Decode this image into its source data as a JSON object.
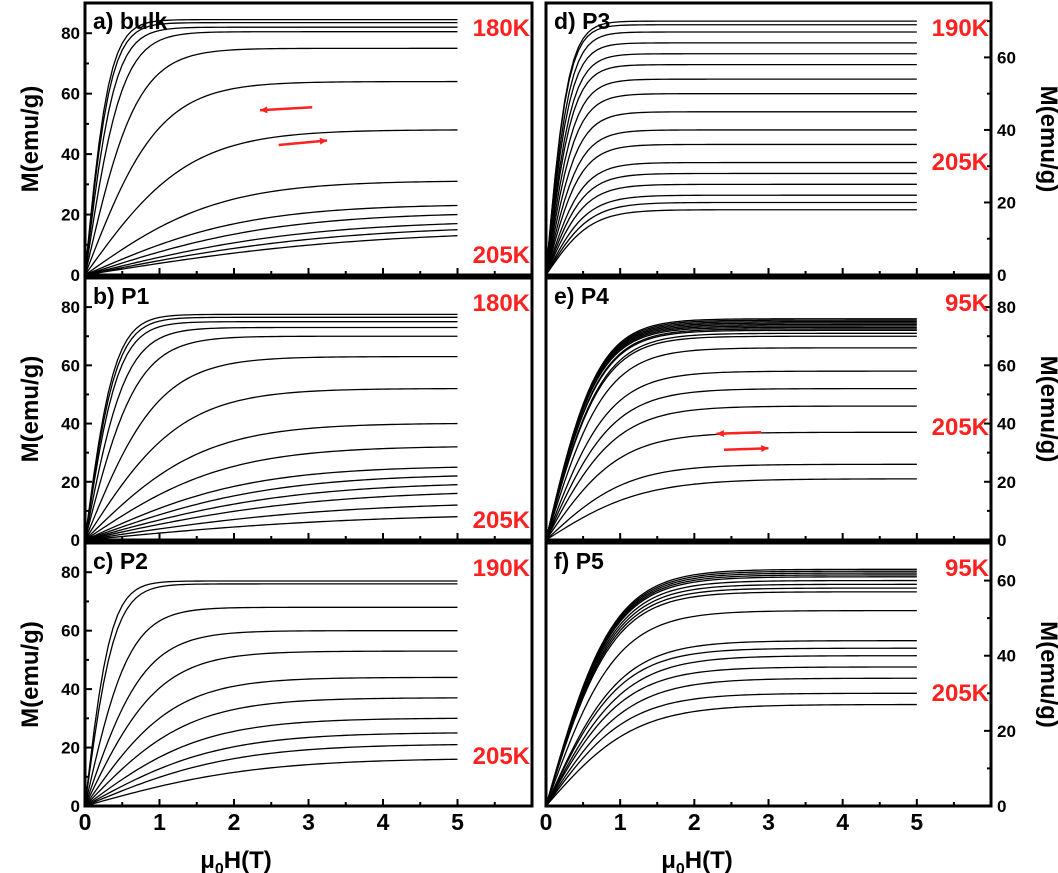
{
  "colors": {
    "axis": "#000000",
    "curve": "#000000",
    "temperature": "#ff2020",
    "arrow": "#ff2020"
  },
  "chart_data": [
    {
      "type": "line",
      "panel_label": "a) bulk",
      "xlabel_main": "μ",
      "xlabel_sub": "0",
      "xlabel_tail": "H(T)",
      "ylabel": "M(emu/g)",
      "xlim": [
        0,
        6
      ],
      "ylim": [
        0,
        90
      ],
      "xticks": [
        0,
        1,
        2,
        3,
        4,
        5
      ],
      "yticks": [
        0,
        20,
        40,
        60,
        80
      ],
      "show_xtick_labels": false,
      "ylabel_side": "left",
      "temp_high": "180K",
      "temp_low": "205K",
      "curve_end_values": [
        84.5,
        83.5,
        82,
        80.5,
        75,
        64,
        48,
        31,
        23,
        20,
        17,
        15,
        13
      ],
      "curve_knee_fields": [
        0.33,
        0.35,
        0.4,
        0.5,
        0.7,
        1.0,
        1.4,
        1.8,
        2.2,
        2.6,
        3.0,
        3.4,
        3.8
      ],
      "arrows": [
        {
          "x1": 3.05,
          "y1": 55.5,
          "x2": 2.35,
          "y2": 54.5,
          "direction": "left"
        },
        {
          "x1": 2.6,
          "y1": 43,
          "x2": 3.25,
          "y2": 44.5,
          "direction": "right"
        }
      ]
    },
    {
      "type": "line",
      "panel_label": "b) P1",
      "ylabel": "M(emu/g)",
      "xlim": [
        0,
        6
      ],
      "ylim": [
        0,
        90
      ],
      "xticks": [
        0,
        1,
        2,
        3,
        4,
        5
      ],
      "yticks": [
        0,
        20,
        40,
        60,
        80
      ],
      "show_xtick_labels": false,
      "ylabel_side": "left",
      "temp_high": "180K",
      "temp_low": "205K",
      "curve_end_values": [
        77.5,
        76.5,
        75,
        73,
        70,
        63,
        52,
        40,
        32,
        25,
        22,
        19,
        16,
        12,
        8
      ],
      "curve_knee_fields": [
        0.4,
        0.42,
        0.45,
        0.55,
        0.7,
        1.0,
        1.3,
        1.6,
        1.9,
        2.2,
        2.5,
        2.8,
        3.1,
        3.4,
        3.8
      ],
      "arrows": []
    },
    {
      "type": "line",
      "panel_label": "c) P2",
      "ylabel": "M(emu/g)",
      "xlim": [
        0,
        6
      ],
      "ylim": [
        0,
        90
      ],
      "xticks": [
        0,
        1,
        2,
        3,
        4,
        5
      ],
      "yticks": [
        0,
        20,
        40,
        60,
        80
      ],
      "show_xtick_labels": true,
      "ylabel_side": "left",
      "temp_high": "190K",
      "temp_low": "205K",
      "curve_end_values": [
        77,
        76,
        68,
        60,
        53,
        44,
        37,
        30,
        25,
        21,
        16
      ],
      "curve_knee_fields": [
        0.35,
        0.4,
        0.6,
        0.8,
        1.0,
        1.2,
        1.4,
        1.6,
        1.8,
        2.0,
        2.3
      ],
      "arrows": []
    },
    {
      "type": "line",
      "panel_label": "d) P3",
      "ylabel": "M(emu/g)",
      "xlim": [
        0,
        6
      ],
      "ylim": [
        0,
        75
      ],
      "xticks": [
        0,
        1,
        2,
        3,
        4,
        5
      ],
      "yticks": [
        0,
        20,
        40,
        60
      ],
      "show_xtick_labels": false,
      "ylabel_side": "right",
      "temp_high": "190K",
      "temp_low": "205K",
      "curve_end_values": [
        70,
        69,
        67,
        64,
        61,
        58,
        54,
        50,
        45,
        40,
        36,
        31,
        28,
        25,
        22,
        20,
        18
      ],
      "curve_knee_fields": [
        0.3,
        0.3,
        0.32,
        0.33,
        0.35,
        0.36,
        0.38,
        0.4,
        0.42,
        0.44,
        0.46,
        0.48,
        0.5,
        0.52,
        0.55,
        0.58,
        0.6
      ],
      "arrows": []
    },
    {
      "type": "line",
      "panel_label": "e) P4",
      "ylabel": "M(emu/g)",
      "xlim": [
        0,
        6
      ],
      "ylim": [
        0,
        90
      ],
      "xticks": [
        0,
        1,
        2,
        3,
        4,
        5
      ],
      "yticks": [
        0,
        20,
        40,
        60,
        80
      ],
      "show_xtick_labels": false,
      "ylabel_side": "right",
      "temp_high": "95K",
      "temp_low": "205K",
      "curve_end_values": [
        76,
        75.5,
        75,
        74.5,
        74,
        73.5,
        73,
        72.5,
        72,
        71,
        70,
        66,
        58,
        52,
        46,
        37,
        26,
        21
      ],
      "curve_knee_fields": [
        0.7,
        0.7,
        0.7,
        0.7,
        0.7,
        0.7,
        0.7,
        0.72,
        0.72,
        0.75,
        0.75,
        0.8,
        0.85,
        0.9,
        0.95,
        1.0,
        1.1,
        1.3
      ],
      "arrows": [
        {
          "x1": 2.9,
          "y1": 37,
          "x2": 2.3,
          "y2": 36.5,
          "direction": "left"
        },
        {
          "x1": 2.4,
          "y1": 31,
          "x2": 3.0,
          "y2": 31.5,
          "direction": "right"
        }
      ]
    },
    {
      "type": "line",
      "panel_label": "f) P5",
      "ylabel": "M(emu/g)",
      "xlim": [
        0,
        6
      ],
      "ylim": [
        0,
        70
      ],
      "xticks": [
        0,
        1,
        2,
        3,
        4,
        5
      ],
      "yticks": [
        0,
        20,
        40,
        60
      ],
      "show_xtick_labels": true,
      "ylabel_side": "right",
      "temp_high": "95K",
      "temp_low": "205K",
      "curve_end_values": [
        63,
        62.5,
        62,
        61.5,
        61,
        60,
        59,
        58,
        57,
        52,
        44,
        42,
        40,
        37,
        34,
        30,
        27
      ],
      "curve_knee_fields": [
        0.9,
        0.9,
        0.9,
        0.9,
        0.9,
        0.9,
        0.9,
        0.9,
        0.9,
        0.95,
        1.0,
        1.0,
        1.05,
        1.05,
        1.1,
        1.1,
        1.2
      ],
      "arrows": []
    }
  ]
}
